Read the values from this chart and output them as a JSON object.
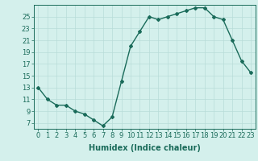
{
  "x": [
    0,
    1,
    2,
    3,
    4,
    5,
    6,
    7,
    8,
    9,
    10,
    11,
    12,
    13,
    14,
    15,
    16,
    17,
    18,
    19,
    20,
    21,
    22,
    23
  ],
  "y": [
    13,
    11,
    10,
    10,
    9,
    8.5,
    7.5,
    6.5,
    8,
    14,
    20,
    22.5,
    25,
    24.5,
    25,
    25.5,
    26,
    26.5,
    26.5,
    25,
    24.5,
    21,
    17.5,
    15.5
  ],
  "line_color": "#1a6b5a",
  "bg_color": "#d4f0ec",
  "grid_color": "#b8dcd8",
  "xlabel": "Humidex (Indice chaleur)",
  "ylabel_ticks": [
    7,
    9,
    11,
    13,
    15,
    17,
    19,
    21,
    23,
    25
  ],
  "ylim": [
    6.0,
    27.0
  ],
  "xlim": [
    -0.5,
    23.5
  ],
  "xlabel_fontsize": 7,
  "tick_fontsize": 6,
  "marker": "D",
  "marker_size": 2,
  "line_width": 1.0
}
